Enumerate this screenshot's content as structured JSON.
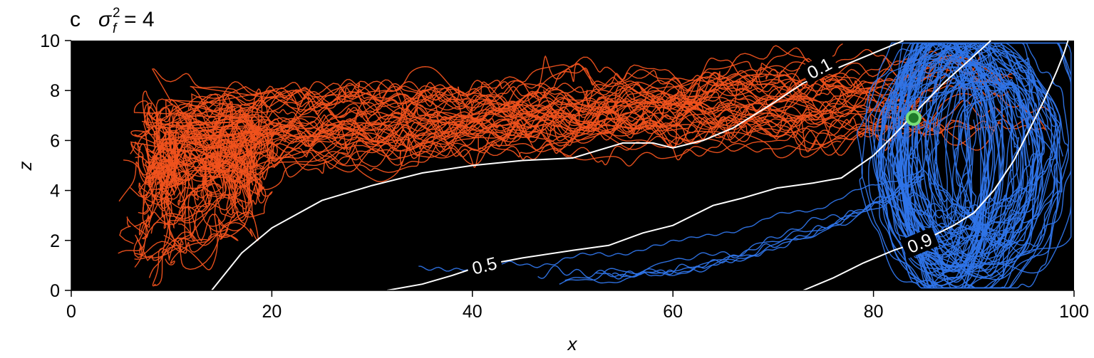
{
  "chart_data": {
    "type": "line",
    "panel_letter": "c",
    "title_symbol": "σ",
    "title_sup": "2",
    "title_sub": "f",
    "title_rest": "= 4",
    "xlabel": "x",
    "ylabel": "z",
    "xlim": [
      0,
      100
    ],
    "ylim": [
      0,
      10
    ],
    "xticks": [
      0,
      20,
      40,
      60,
      80,
      100
    ],
    "yticks": [
      0,
      2,
      4,
      6,
      8,
      10
    ],
    "background": "#000000",
    "grid": false,
    "colors": {
      "red_trajectories": "#f0521e",
      "blue_trajectories": "#2f74e8",
      "contour": "#ffffff",
      "marker_fill": "#1f7a2a",
      "marker_edge": "#7be07a"
    },
    "contours": [
      {
        "label": "0.1",
        "label_at": [
          74.6,
          8.9
        ],
        "points": [
          [
            14,
            0
          ],
          [
            17,
            1.5
          ],
          [
            20,
            2.5
          ],
          [
            25,
            3.6
          ],
          [
            30,
            4.2
          ],
          [
            35,
            4.7
          ],
          [
            40,
            5.0
          ],
          [
            45,
            5.2
          ],
          [
            50,
            5.3
          ],
          [
            55,
            5.9
          ],
          [
            58,
            5.9
          ],
          [
            60,
            5.7
          ],
          [
            63,
            6.0
          ],
          [
            66,
            6.5
          ],
          [
            70,
            7.5
          ],
          [
            73,
            8.3
          ],
          [
            77,
            9.0
          ],
          [
            80,
            9.5
          ],
          [
            83,
            10
          ]
        ]
      },
      {
        "label": "0.5",
        "label_at": [
          41.2,
          1.0
        ],
        "points": [
          [
            31.5,
            0
          ],
          [
            35,
            0.25
          ],
          [
            38,
            0.6
          ],
          [
            41,
            1.0
          ],
          [
            45,
            1.3
          ],
          [
            50,
            1.6
          ],
          [
            53.6,
            1.8
          ],
          [
            57,
            2.3
          ],
          [
            60,
            2.6
          ],
          [
            64,
            3.4
          ],
          [
            67,
            3.7
          ],
          [
            70.4,
            4.1
          ],
          [
            74,
            4.3
          ],
          [
            76.8,
            4.5
          ],
          [
            80,
            5.4
          ],
          [
            82,
            6.2
          ],
          [
            84.6,
            7.3
          ],
          [
            87,
            8.3
          ],
          [
            89.5,
            9.2
          ],
          [
            91.7,
            10
          ]
        ]
      },
      {
        "label": "0.9",
        "label_at": [
          84.6,
          1.9
        ],
        "points": [
          [
            73,
            0
          ],
          [
            76,
            0.5
          ],
          [
            79,
            1.1
          ],
          [
            82,
            1.6
          ],
          [
            85,
            2.0
          ],
          [
            88,
            2.6
          ],
          [
            90,
            3.1
          ],
          [
            92,
            4.0
          ],
          [
            94,
            5.2
          ],
          [
            95.5,
            6.4
          ],
          [
            97,
            7.6
          ],
          [
            98.3,
            8.8
          ],
          [
            99,
            9.5
          ],
          [
            99.4,
            10
          ]
        ]
      }
    ],
    "marker": {
      "x": 84,
      "z": 6.9
    }
  }
}
